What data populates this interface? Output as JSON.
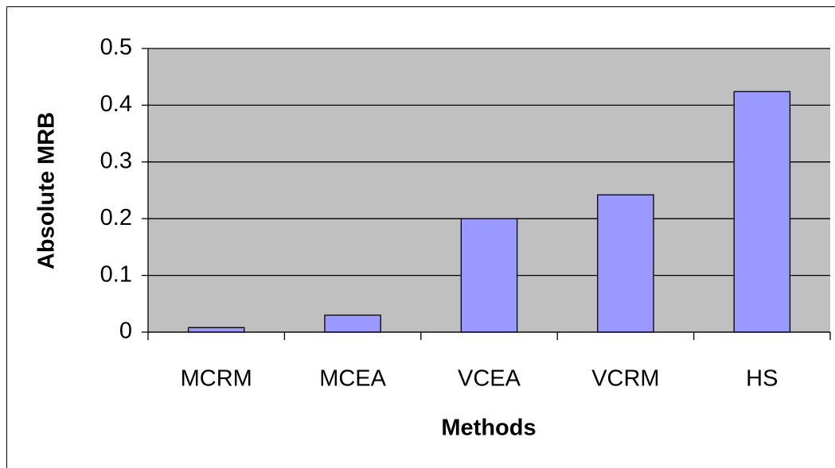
{
  "chart_data": {
    "type": "bar",
    "categories": [
      "MCRM",
      "MCEA",
      "VCEA",
      "VCRM",
      "HS"
    ],
    "values": [
      0.008,
      0.03,
      0.2,
      0.242,
      0.424
    ],
    "color": "#9999ff",
    "x_label": "Methods",
    "y_label": "Absolute MRB",
    "ylim": [
      0,
      0.5
    ],
    "yticks": [
      0,
      0.1,
      0.2,
      0.3,
      0.4,
      0.5
    ],
    "grid": true
  }
}
